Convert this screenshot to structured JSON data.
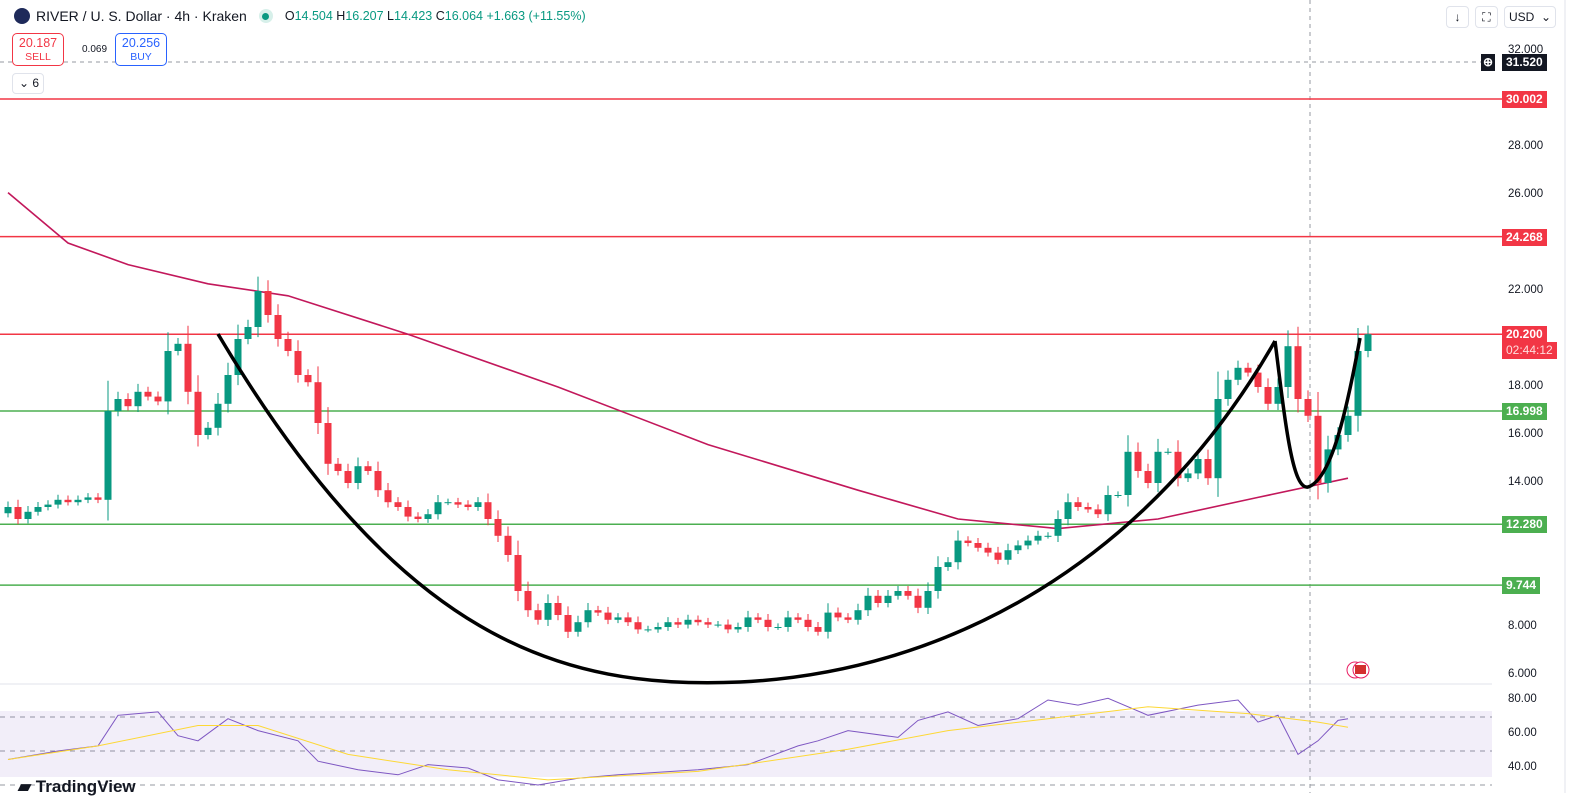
{
  "header": {
    "symbol": "RIVER / U. S. Dollar · 4h · Kraken",
    "open_label": "O",
    "open": "14.504",
    "high_label": "H",
    "high": "16.207",
    "low_label": "L",
    "low": "14.423",
    "close_label": "C",
    "close": "16.064",
    "change": "+1.663 (+11.55%)"
  },
  "trade": {
    "sell_price": "20.187",
    "sell_label": "SELL",
    "spread": "0.069",
    "buy_price": "20.256",
    "buy_label": "BUY"
  },
  "indicators_toggle": {
    "count": "6"
  },
  "toolbar": {
    "currency": "USD"
  },
  "price_axis": {
    "ticks": [
      "32.000",
      "28.000",
      "26.000",
      "22.000",
      "18.000",
      "16.000",
      "14.000",
      "8.000",
      "6.000"
    ],
    "crosshair_price": "31.520",
    "countdown": "02:44:12"
  },
  "rsi_axis": {
    "ticks": [
      "80.00",
      "60.00",
      "40.00"
    ]
  },
  "branding": {
    "logo_text": "TradingView"
  },
  "colors": {
    "up": "#089981",
    "down": "#f23645",
    "resistance": "#f23645",
    "support": "#4caf50",
    "ma": "#c2185b",
    "rsi": "#7e57c2",
    "rsi_ma": "#fdd835"
  },
  "chart_data": {
    "type": "candlestick",
    "price_range": [
      6,
      32
    ],
    "levels": [
      {
        "value": 30.002,
        "label": "30.002",
        "kind": "resistance"
      },
      {
        "value": 24.268,
        "label": "24.268",
        "kind": "resistance"
      },
      {
        "value": 20.2,
        "label": "20.200",
        "kind": "resistance"
      },
      {
        "value": 16.998,
        "label": "16.998",
        "kind": "support"
      },
      {
        "value": 12.28,
        "label": "12.280",
        "kind": "support"
      },
      {
        "value": 9.744,
        "label": "9.744",
        "kind": "support"
      }
    ],
    "closes": [
      13,
      12.5,
      12.8,
      13,
      13.1,
      13.3,
      13.2,
      13.3,
      13.4,
      13.3,
      17,
      17.5,
      17.2,
      17.8,
      17.6,
      17.4,
      19.5,
      19.8,
      17.8,
      16,
      16.3,
      17.3,
      18.5,
      20,
      20.5,
      22,
      21,
      20,
      19.5,
      18.5,
      18.2,
      16.5,
      14.8,
      14.5,
      14,
      14.7,
      14.5,
      13.7,
      13.2,
      13,
      12.6,
      12.5,
      12.7,
      13.2,
      13.2,
      13.1,
      13,
      13.2,
      12.5,
      11.8,
      11,
      9.5,
      8.7,
      8.3,
      9,
      8.5,
      7.8,
      8.2,
      8.7,
      8.6,
      8.3,
      8.4,
      8.2,
      7.9,
      7.9,
      8,
      8.2,
      8.1,
      8.3,
      8.2,
      8.1,
      8.1,
      7.9,
      8,
      8.4,
      8.3,
      8,
      8,
      8.4,
      8.3,
      8,
      7.8,
      8.6,
      8.4,
      8.3,
      8.7,
      9.3,
      9,
      9.3,
      9.5,
      9.3,
      8.8,
      9.5,
      10.5,
      10.7,
      11.6,
      11.5,
      11.3,
      11.1,
      10.8,
      11.2,
      11.4,
      11.6,
      11.8,
      11.8,
      12.5,
      13.2,
      13,
      12.9,
      12.7,
      13.5,
      13.5,
      15.3,
      14.5,
      14,
      15.3,
      15.3,
      14.2,
      14.4,
      15,
      14.2,
      17.5,
      18.3,
      18.8,
      18.6,
      18,
      17.3,
      18,
      19.7,
      17.5,
      16.8,
      14,
      15.4,
      16,
      16.8,
      19.5,
      20.2
    ],
    "moving_average": [
      [
        0,
        26.1
      ],
      [
        6,
        24
      ],
      [
        12,
        23.1
      ],
      [
        20,
        22.3
      ],
      [
        28,
        21.8
      ],
      [
        40,
        20.2
      ],
      [
        55,
        18
      ],
      [
        70,
        15.6
      ],
      [
        85,
        13.7
      ],
      [
        95,
        12.5
      ],
      [
        105,
        12.1
      ],
      [
        115,
        12.5
      ],
      [
        125,
        13.4
      ],
      [
        134,
        14.2
      ]
    ],
    "rsi_range": [
      30,
      80
    ],
    "rsi_bands": [
      70,
      50,
      30
    ],
    "rsi": [
      [
        0,
        45
      ],
      [
        5,
        50
      ],
      [
        9,
        53
      ],
      [
        11,
        71
      ],
      [
        15,
        73
      ],
      [
        17,
        59
      ],
      [
        19,
        56
      ],
      [
        22,
        69
      ],
      [
        25,
        62
      ],
      [
        29,
        56
      ],
      [
        31,
        44
      ],
      [
        35,
        39
      ],
      [
        39,
        36
      ],
      [
        42,
        42
      ],
      [
        46,
        40
      ],
      [
        49,
        33
      ],
      [
        53,
        30
      ],
      [
        57,
        34
      ],
      [
        61,
        36
      ],
      [
        69,
        39
      ],
      [
        74,
        42
      ],
      [
        79,
        53
      ],
      [
        81,
        56
      ],
      [
        84,
        62
      ],
      [
        89,
        58
      ],
      [
        91,
        68
      ],
      [
        94,
        73
      ],
      [
        97,
        65
      ],
      [
        101,
        69
      ],
      [
        104,
        80
      ],
      [
        107,
        77
      ],
      [
        110,
        81
      ],
      [
        114,
        71
      ],
      [
        119,
        77
      ],
      [
        123,
        80
      ],
      [
        125,
        67
      ],
      [
        127,
        71
      ],
      [
        129,
        48
      ],
      [
        131,
        56
      ],
      [
        133,
        68
      ],
      [
        134,
        69
      ]
    ],
    "rsi_ma": [
      [
        0,
        45
      ],
      [
        9,
        53
      ],
      [
        19,
        65
      ],
      [
        25,
        65
      ],
      [
        34,
        48
      ],
      [
        44,
        39
      ],
      [
        54,
        33
      ],
      [
        69,
        38
      ],
      [
        84,
        51
      ],
      [
        94,
        62
      ],
      [
        104,
        69
      ],
      [
        114,
        76
      ],
      [
        124,
        72
      ],
      [
        131,
        67
      ],
      [
        134,
        64
      ]
    ]
  }
}
